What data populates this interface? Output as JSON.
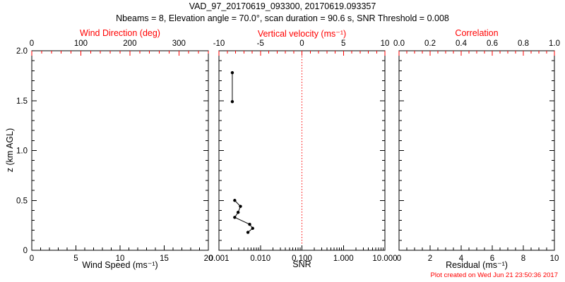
{
  "header": {
    "title": "VAD_97_20170619_093300, 20170619.093357",
    "subtitle": "Nbeams = 8, Elevation angle = 70.0°, scan duration = 90.6 s, SNR Threshold = 0.008"
  },
  "footer": {
    "created": "Plot created on Wed Jun 21 23:50:36 2017"
  },
  "colors": {
    "axis": "#000000",
    "secondary_axis": "#ff0000",
    "data": "#000000",
    "background": "#ffffff"
  },
  "yaxis": {
    "label": "z (km AGL)",
    "range": [
      0,
      2
    ],
    "tick_values": [
      0,
      0.5,
      1,
      1.5,
      2
    ],
    "tick_labels": [
      "0",
      "0.5",
      "1.0",
      "1.5",
      "2.0"
    ],
    "minor_step": 0.1
  },
  "chart_data": [
    {
      "type": "scatter",
      "name": "wind-speed-panel",
      "bottom_axis": {
        "label": "Wind Speed (ms⁻¹)",
        "scale": "linear",
        "range": [
          0,
          20
        ],
        "tick_values": [
          0,
          5,
          10,
          15,
          20
        ],
        "tick_labels": [
          "0",
          "5",
          "10",
          "15",
          "20"
        ],
        "minor_step": 1
      },
      "top_axis": {
        "label": "Wind Direction (deg)",
        "scale": "linear",
        "range": [
          0,
          360
        ],
        "tick_values": [
          0,
          100,
          200,
          300
        ],
        "tick_labels": [
          "0",
          "100",
          "200",
          "300"
        ],
        "minor_step": 20,
        "color": "#ff0000"
      },
      "series": []
    },
    {
      "type": "line",
      "name": "snr-panel",
      "bottom_axis": {
        "label": "SNR",
        "scale": "log",
        "range": [
          0.001,
          10
        ],
        "tick_values": [
          0.001,
          0.01,
          0.1,
          1,
          10
        ],
        "tick_labels": [
          "0.001",
          "0.010",
          "0.100",
          "1.000",
          "10.000"
        ]
      },
      "top_axis": {
        "label": "Vertical velocity (ms⁻¹)",
        "scale": "linear",
        "range": [
          -10,
          10
        ],
        "tick_values": [
          -10,
          -5,
          0,
          5,
          10
        ],
        "tick_labels": [
          "-10",
          "-5",
          "0",
          "5",
          "10"
        ],
        "minor_step": 1,
        "color": "#ff0000"
      },
      "ref_line": {
        "x": 0.1,
        "color": "#ff0000",
        "style": "dotted"
      },
      "series": [
        {
          "name": "snr-profile-upper",
          "marker": "dot",
          "points": [
            [
              0.0021,
              1.78
            ],
            [
              0.0021,
              1.49
            ]
          ]
        },
        {
          "name": "snr-profile-lower",
          "marker": "dot",
          "points": [
            [
              0.0024,
              0.5
            ],
            [
              0.0033,
              0.44
            ],
            [
              0.0029,
              0.38
            ],
            [
              0.0024,
              0.33
            ],
            [
              0.0055,
              0.26
            ],
            [
              0.0065,
              0.22
            ],
            [
              0.005,
              0.18
            ]
          ]
        }
      ]
    },
    {
      "type": "scatter",
      "name": "residual-panel",
      "bottom_axis": {
        "label": "Residual (ms⁻¹)",
        "scale": "linear",
        "range": [
          0,
          10
        ],
        "tick_values": [
          0,
          2,
          4,
          6,
          8,
          10
        ],
        "tick_labels": [
          "0",
          "2",
          "4",
          "6",
          "8",
          "10"
        ],
        "minor_step": 0.5
      },
      "top_axis": {
        "label": "Correlation",
        "scale": "linear",
        "range": [
          0,
          1
        ],
        "tick_values": [
          0,
          0.2,
          0.4,
          0.6,
          0.8,
          1
        ],
        "tick_labels": [
          "0.0",
          "0.2",
          "0.4",
          "0.6",
          "0.8",
          "1.0"
        ],
        "minor_step": 0.05,
        "color": "#ff0000"
      },
      "series": []
    }
  ]
}
